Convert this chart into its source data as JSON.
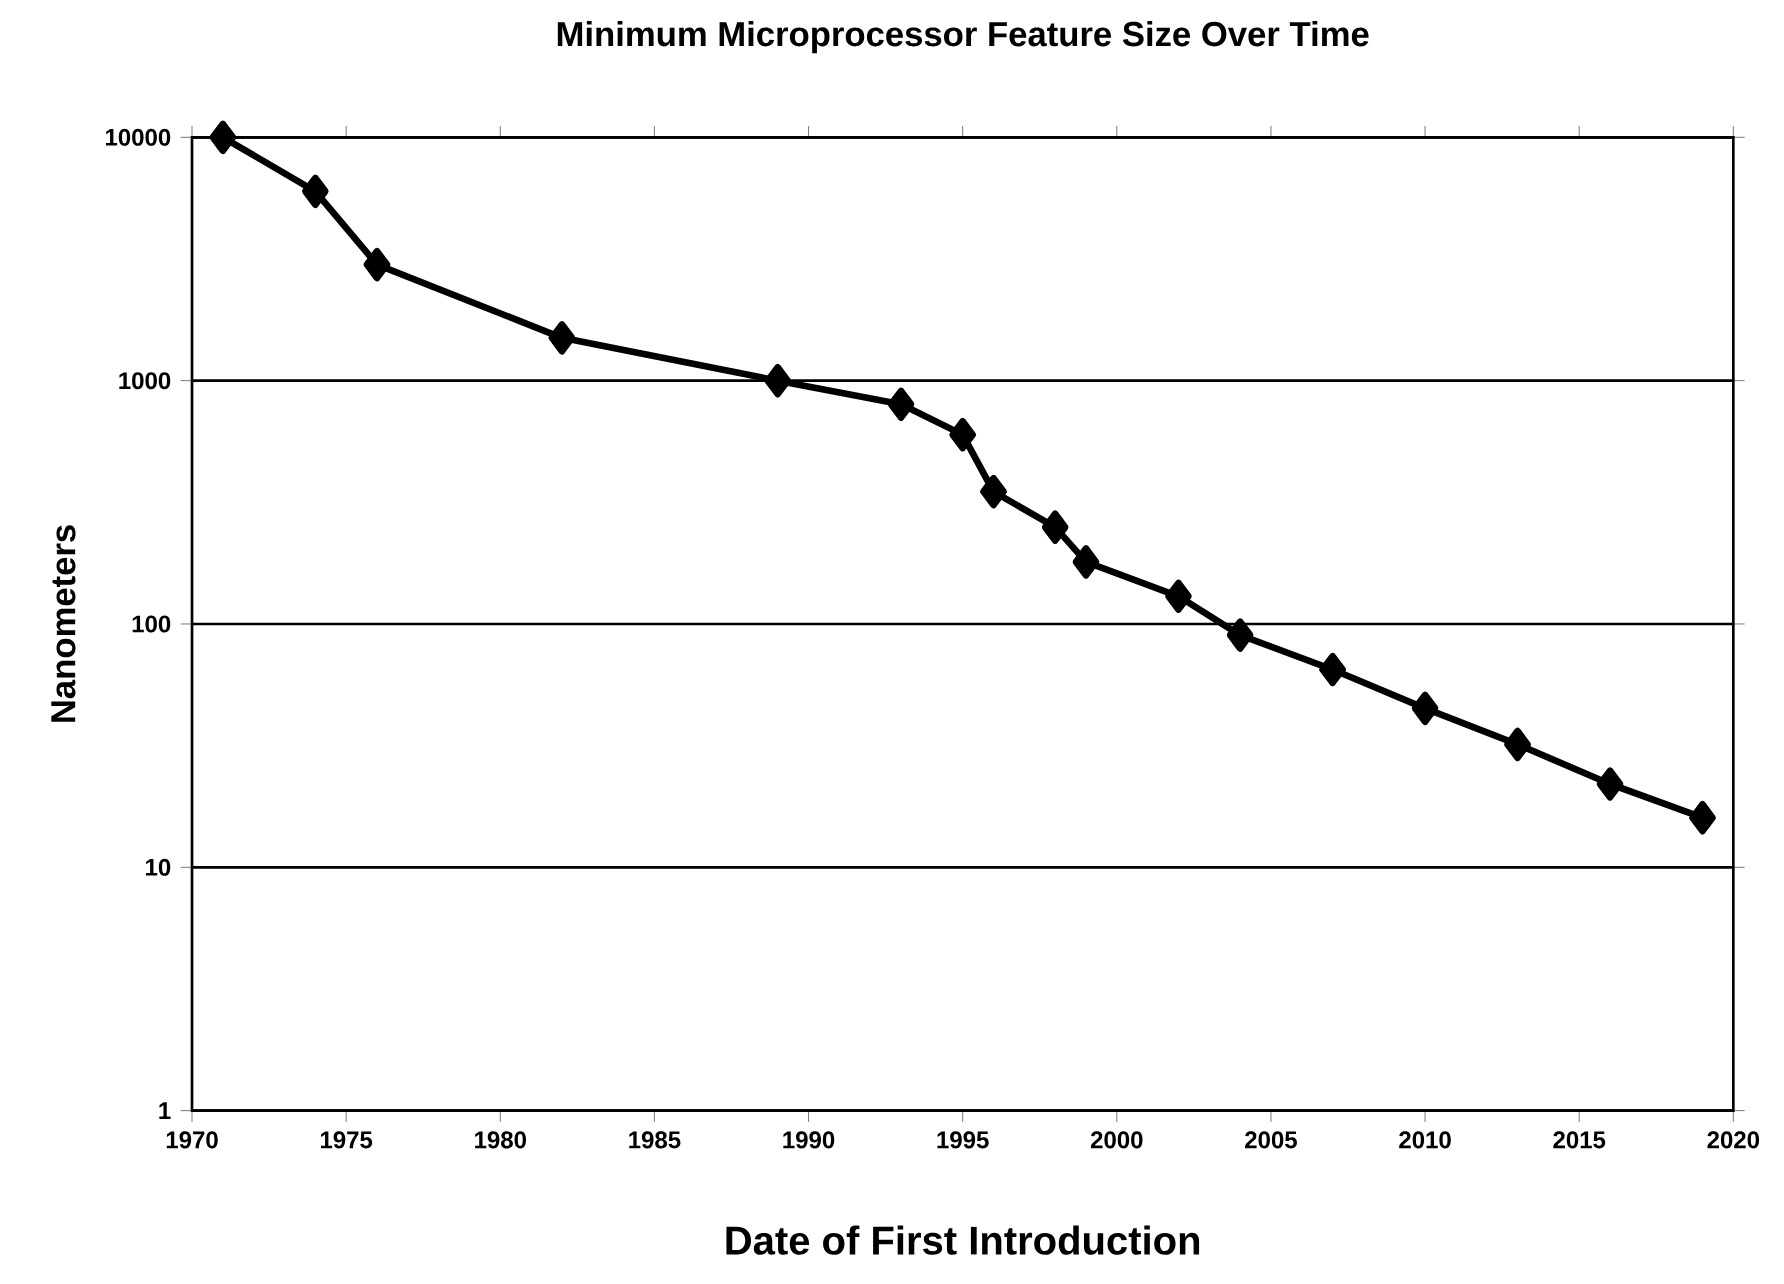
{
  "chart_data": {
    "type": "line",
    "title": "Minimum Microprocessor Feature Size Over Time",
    "xlabel": "Date of First Introduction",
    "ylabel": "Nanometers",
    "x": [
      1971,
      1974,
      1976,
      1982,
      1989,
      1993,
      1995,
      1996,
      1998,
      1999,
      2002,
      2004,
      2007,
      2010,
      2013,
      2016,
      2019
    ],
    "series": [
      {
        "color": "#000000",
        "values": [
          10000,
          6000,
          3000,
          1500,
          1000,
          800,
          600,
          350,
          250,
          180,
          130,
          90,
          65,
          45,
          32,
          22,
          16
        ]
      }
    ],
    "xlim": [
      1970,
      2020
    ],
    "xticks": [
      1970,
      1975,
      1980,
      1985,
      1990,
      1995,
      2000,
      2005,
      2010,
      2015,
      2020
    ],
    "ylim": [
      1,
      10000
    ],
    "yticks": [
      1,
      10,
      100,
      1000,
      10000
    ],
    "log": "y",
    "grid": "y",
    "marker": "diamond",
    "line_style": "solid"
  }
}
